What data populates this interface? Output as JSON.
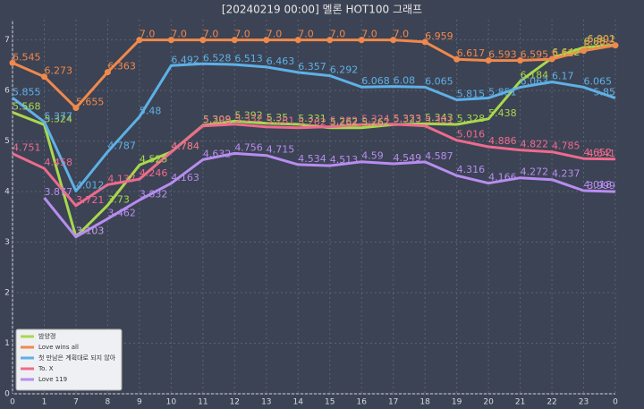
{
  "chart_data": {
    "type": "line",
    "title": "[20240219 00:00] 멜론 HOT100 그래프",
    "categories": [
      "0",
      "1",
      "7",
      "8",
      "9",
      "10",
      "11",
      "12",
      "13",
      "14",
      "15",
      "16",
      "17",
      "18",
      "19",
      "20",
      "21",
      "22",
      "23",
      "0"
    ],
    "ylim": [
      0,
      7.4
    ],
    "yticks": [
      0,
      1,
      2,
      3,
      4,
      5,
      6,
      7
    ],
    "grid": true,
    "legend": "lower left",
    "series": [
      {
        "name": "밤양갱",
        "color": "#a9d84c",
        "values": [
          5.568,
          5.324,
          3.103,
          3.73,
          4.525,
          4.784,
          5.309,
          5.392,
          5.35,
          5.331,
          5.262,
          5.262,
          5.323,
          5.343,
          5.328,
          5.438,
          6.184,
          6.642,
          6.85,
          6.901
        ]
      },
      {
        "name": "Love wins all",
        "color": "#f0894c",
        "marker": true,
        "values": [
          6.545,
          6.273,
          5.655,
          6.363,
          7,
          7,
          7,
          7,
          7,
          7,
          7,
          7,
          7,
          6.959,
          6.617,
          6.593,
          6.595,
          6.62,
          6.785,
          6.892
        ],
        "value_labels": [
          "6.545",
          "6.273",
          "5.655",
          "6.363",
          "7.0",
          "7.0",
          "7.0",
          "7.0",
          "7.0",
          "7.0",
          "7.0",
          "7.0",
          "7.0",
          "6.959",
          "6.617",
          "6.593",
          "6.595",
          "6.62",
          "6.785",
          "6.892"
        ]
      },
      {
        "name": "첫 만남은 계획대로 되지 않아",
        "color": "#5eb1e6",
        "values": [
          5.855,
          5.377,
          4.012,
          4.787,
          5.48,
          6.492,
          6.528,
          6.513,
          6.463,
          6.357,
          6.292,
          6.068,
          6.08,
          6.065,
          5.815,
          5.851,
          6.063,
          6.17,
          6.065,
          5.85
        ]
      },
      {
        "name": "To. X",
        "color": "#ee6b8d",
        "values": [
          4.751,
          4.458,
          3.721,
          4.137,
          4.246,
          4.784,
          5.298,
          5.332,
          5.281,
          5.262,
          5.282,
          5.324,
          5.333,
          5.301,
          5.016,
          4.886,
          4.822,
          4.785,
          4.652,
          4.641
        ]
      },
      {
        "name": "Love 119",
        "color": "#b88df0",
        "values": [
          null,
          3.877,
          3.103,
          3.462,
          3.832,
          4.163,
          4.632,
          4.756,
          4.715,
          4.534,
          4.513,
          4.59,
          4.549,
          4.587,
          4.316,
          4.166,
          4.272,
          4.237,
          4.018,
          3.999
        ]
      }
    ]
  }
}
